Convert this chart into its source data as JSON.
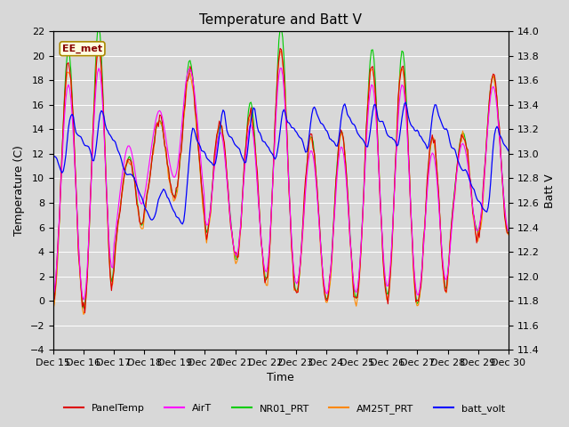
{
  "title": "Temperature and Batt V",
  "xlabel": "Time",
  "ylabel_left": "Temperature (C)",
  "ylabel_right": "Batt V",
  "ylim_left": [
    -4,
    22
  ],
  "ylim_right": [
    11.4,
    14.0
  ],
  "yticks_left": [
    -4,
    -2,
    0,
    2,
    4,
    6,
    8,
    10,
    12,
    14,
    16,
    18,
    20,
    22
  ],
  "yticks_right": [
    11.4,
    11.6,
    11.8,
    12.0,
    12.2,
    12.4,
    12.6,
    12.8,
    13.0,
    13.2,
    13.4,
    13.6,
    13.8,
    14.0
  ],
  "xtick_labels": [
    "Dec 15",
    "Dec 16",
    "Dec 17",
    "Dec 18",
    "Dec 19",
    "Dec 20",
    "Dec 21",
    "Dec 22",
    "Dec 23",
    "Dec 24",
    "Dec 25",
    "Dec 26",
    "Dec 27",
    "Dec 28",
    "Dec 29",
    "Dec 30"
  ],
  "station_label": "EE_met",
  "colors": {
    "PanelTemp": "#dd0000",
    "AirT": "#ff00ff",
    "NR01_PRT": "#00cc00",
    "AM25T_PRT": "#ff8800",
    "batt_volt": "#0000ff"
  },
  "legend_entries": [
    "PanelTemp",
    "AirT",
    "NR01_PRT",
    "AM25T_PRT",
    "batt_volt"
  ],
  "fig_facecolor": "#d8d8d8",
  "axes_facecolor": "#d8d8d8",
  "title_fontsize": 11,
  "label_fontsize": 9,
  "tick_fontsize": 8
}
